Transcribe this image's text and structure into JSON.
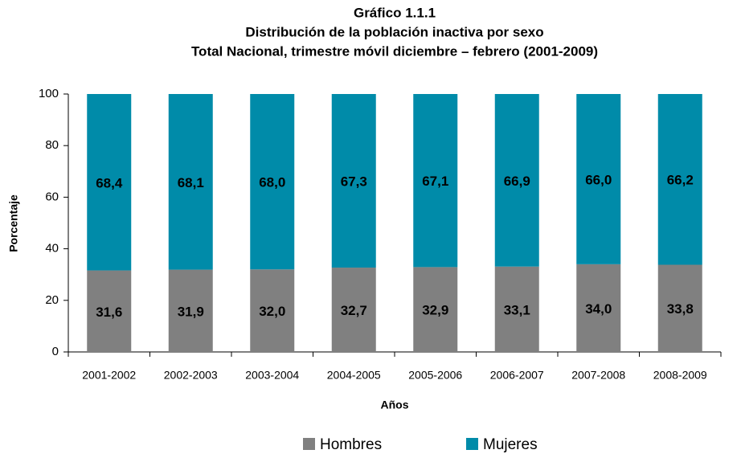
{
  "chart_data": {
    "type": "stacked_bar",
    "title": [
      "Gráfico 1.1.1",
      "Distribución de la población inactiva por sexo",
      "Total Nacional, trimestre móvil diciembre – febrero (2001-2009)"
    ],
    "x_label": "Años",
    "y_label": "Porcentaje",
    "categories": [
      "2001-2002",
      "2002-2003",
      "2003-2004",
      "2004-2005",
      "2005-2006",
      "2006-2007",
      "2007-2008",
      "2008-2009"
    ],
    "series": [
      {
        "name": "Hombres",
        "color": "#808080",
        "values": [
          31.6,
          31.9,
          32.0,
          32.7,
          32.9,
          33.1,
          34.0,
          33.8
        ],
        "value_labels": [
          "31,6",
          "31,9",
          "32,0",
          "32,7",
          "32,9",
          "33,1",
          "34,0",
          "33,8"
        ]
      },
      {
        "name": "Mujeres",
        "color": "#008BA9",
        "values": [
          68.4,
          68.1,
          68.0,
          67.3,
          67.1,
          66.9,
          66.0,
          66.2
        ],
        "value_labels": [
          "68,4",
          "68,1",
          "68,0",
          "67,3",
          "67,1",
          "66,9",
          "66,0",
          "66,2"
        ]
      }
    ],
    "ylim": [
      0,
      100
    ],
    "yticks": [
      0,
      20,
      40,
      60,
      80,
      100
    ],
    "grid": false,
    "legend": "bottom"
  }
}
